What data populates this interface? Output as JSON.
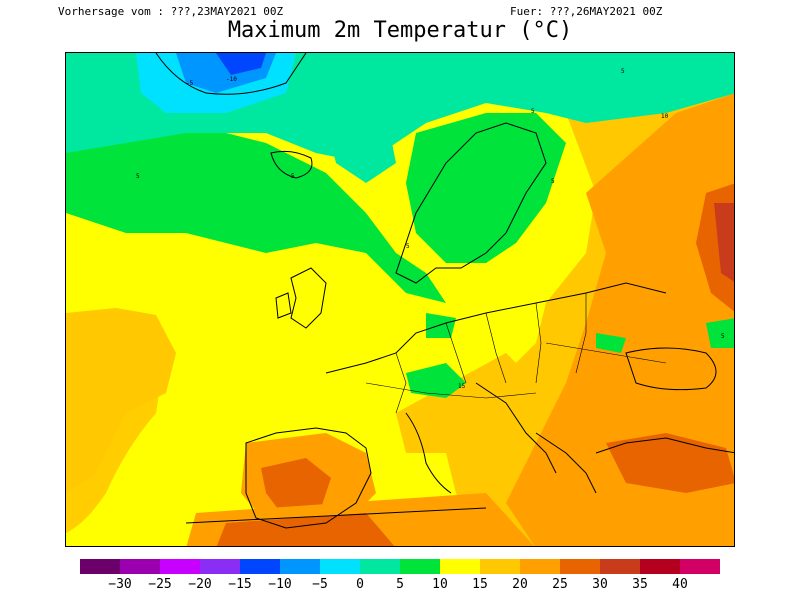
{
  "header": {
    "forecast_from": "Vorhersage vom : ???,23MAY2021 00Z",
    "valid_for": "Fuer: ???,26MAY2021 00Z"
  },
  "title": "Maximum 2m Temperatur (°C)",
  "colors": {
    "land_cool": "#ffff00",
    "sea_cool": "#00e7a0",
    "green": "#00e33a",
    "orange": "#ffc800",
    "dark_orange": "#ff9f00",
    "hot": "#e86400"
  },
  "legend": {
    "colors": [
      "#6b006b",
      "#9a00b0",
      "#c800ff",
      "#8a2ef5",
      "#0046ff",
      "#0096ff",
      "#00e1ff",
      "#00e7a0",
      "#00e33a",
      "#ffff00",
      "#ffc800",
      "#ff9f00",
      "#e86400",
      "#c83c1c",
      "#b4001e",
      "#d20064"
    ],
    "labels": [
      "−30",
      "−25",
      "−20",
      "−15",
      "−10",
      "−5",
      "0",
      "5",
      "10",
      "15",
      "20",
      "25",
      "30",
      "35",
      "40"
    ]
  },
  "contour_labels": [
    "5",
    "5",
    "5",
    "5",
    "5",
    "5",
    "10",
    "15",
    "-5",
    "-10",
    "5"
  ]
}
